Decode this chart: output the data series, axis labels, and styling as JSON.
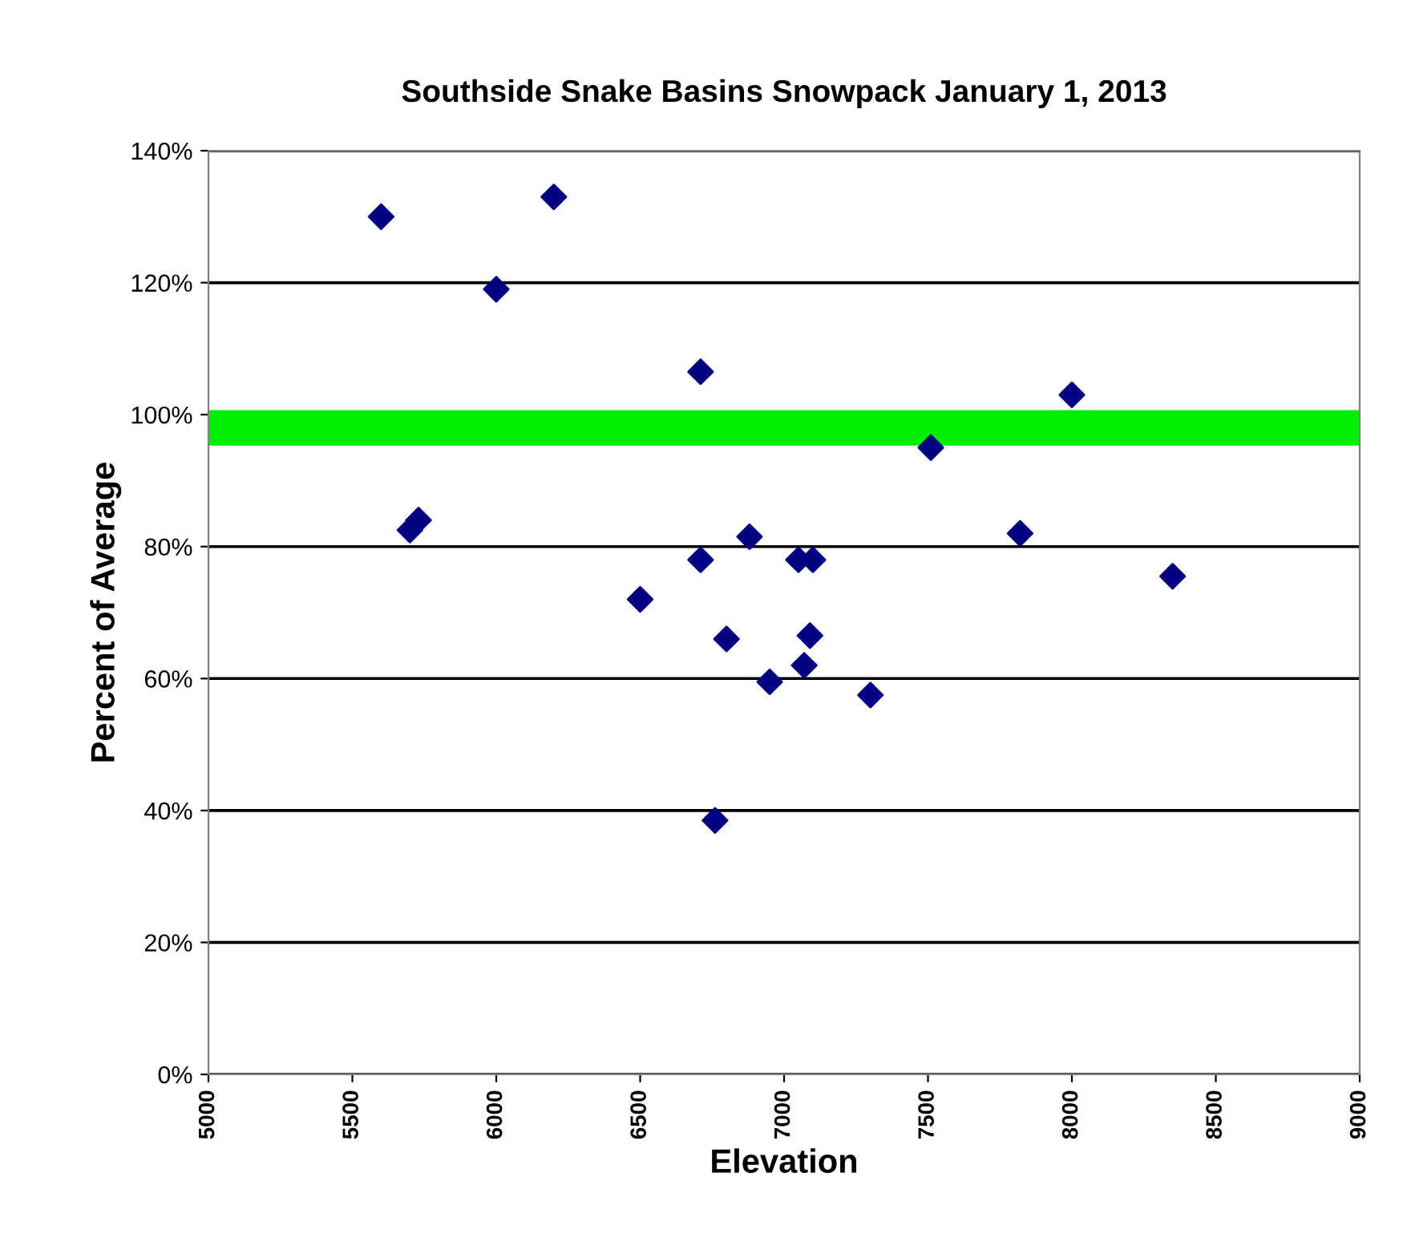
{
  "chart_data": {
    "type": "scatter",
    "title": "Southside Snake Basins Snowpack January 1, 2013",
    "xlabel": "Elevation",
    "ylabel": "Percent of Average",
    "x": [
      5600,
      6200,
      6000,
      5700,
      5730,
      6710,
      6710,
      6880,
      6500,
      6800,
      6950,
      7070,
      7090,
      7050,
      7100,
      7300,
      7510,
      7820,
      8000,
      8350,
      6760
    ],
    "series": [
      {
        "color": "#000080",
        "values": [
          130,
          133,
          119,
          82.5,
          84,
          106.5,
          78,
          81.5,
          72,
          66,
          59.5,
          62,
          66.5,
          78,
          78,
          57.5,
          95,
          82,
          103,
          75.5,
          38.5
        ]
      }
    ],
    "xlim": [
      5000,
      9000
    ],
    "xticks": [
      5000,
      5500,
      6000,
      6500,
      7000,
      7500,
      8000,
      8500,
      9000
    ],
    "ylim": [
      0,
      140
    ],
    "yticks": [
      {
        "value": 0,
        "label": "0%"
      },
      {
        "value": 20,
        "label": "20%"
      },
      {
        "value": 40,
        "label": "40%"
      },
      {
        "value": 60,
        "label": "60%"
      },
      {
        "value": 80,
        "label": "80%"
      },
      {
        "value": 100,
        "label": "100%"
      },
      {
        "value": 120,
        "label": "120%"
      },
      {
        "value": 140,
        "label": "140%"
      }
    ],
    "ref_lines": [
      {
        "axis": "y",
        "value": 98,
        "color": "#00ee00",
        "line_style": "solid"
      }
    ],
    "grid": "y",
    "marker": "diamond",
    "legend": false
  }
}
